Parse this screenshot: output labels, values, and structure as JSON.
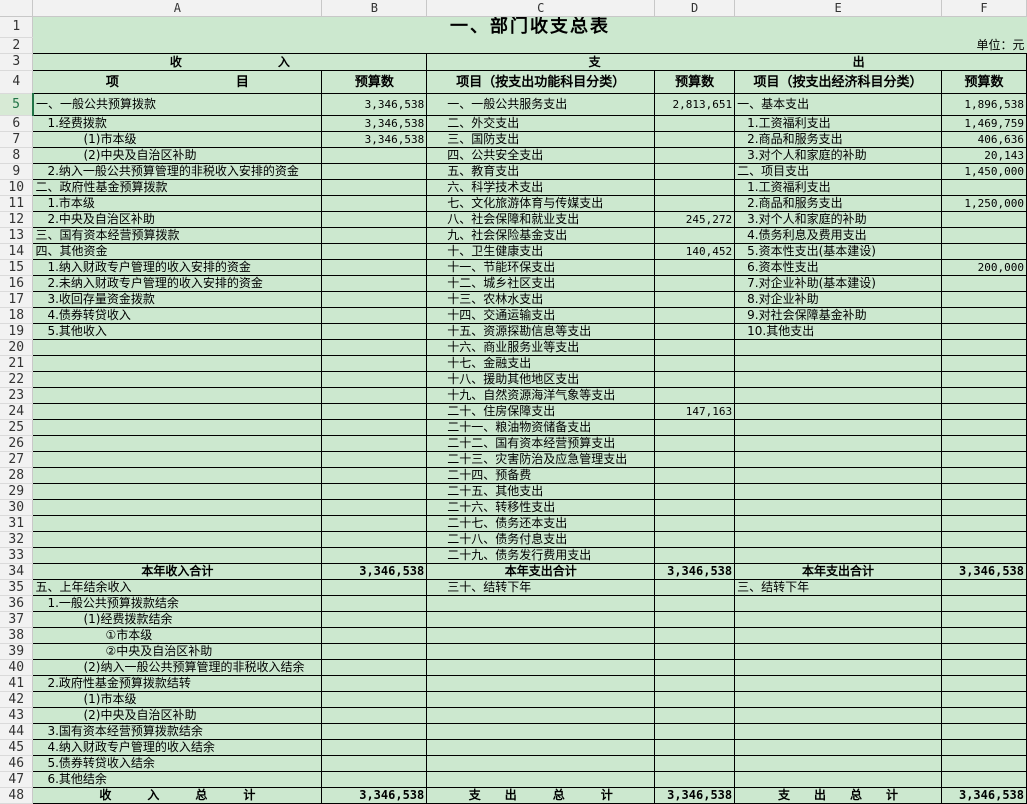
{
  "spreadsheet": {
    "columns": [
      "A",
      "B",
      "C",
      "D",
      "E",
      "F"
    ],
    "selected_row": 5,
    "fill_color": "#cce8cf",
    "title": "一、部门收支总表",
    "unit": "单位：元",
    "section_income": "收　　　　　　　　入",
    "section_expense": "支　　　　　　　　　　　　　　　　　　　　　出",
    "headers": [
      "项　　　　　　　　　目",
      "预算数",
      "项目（按支出功能科目分类）",
      "预算数",
      "项目（按支出经济科目分类）",
      "预算数"
    ],
    "rows": [
      [
        "一、一般公共预算拨款",
        "3,346,538",
        "一、一般公共服务支出",
        "2,813,651",
        "一、基本支出",
        "1,896,538"
      ],
      [
        "1.经费拨款",
        "3,346,538",
        "二、外交支出",
        "",
        "1.工资福利支出",
        "1,469,759"
      ],
      [
        "(1)市本级",
        "3,346,538",
        "三、国防支出",
        "",
        "2.商品和服务支出",
        "406,636"
      ],
      [
        "(2)中央及自治区补助",
        "",
        "四、公共安全支出",
        "",
        "3.对个人和家庭的补助",
        "20,143"
      ],
      [
        "2.纳入一般公共预算管理的非税收入安排的资金",
        "",
        "五、教育支出",
        "",
        "二、项目支出",
        "1,450,000"
      ],
      [
        "二、政府性基金预算拨款",
        "",
        "六、科学技术支出",
        "",
        "1.工资福利支出",
        ""
      ],
      [
        "1.市本级",
        "",
        "七、文化旅游体育与传媒支出",
        "",
        "2.商品和服务支出",
        "1,250,000"
      ],
      [
        "2.中央及自治区补助",
        "",
        "八、社会保障和就业支出",
        "245,272",
        "3.对个人和家庭的补助",
        ""
      ],
      [
        "三、国有资本经营预算拨款",
        "",
        "九、社会保险基金支出",
        "",
        "4.债务利息及费用支出",
        ""
      ],
      [
        "四、其他资金",
        "",
        "十、卫生健康支出",
        "140,452",
        "5.资本性支出(基本建设)",
        ""
      ],
      [
        "1.纳入财政专户管理的收入安排的资金",
        "",
        "十一、节能环保支出",
        "",
        "6.资本性支出",
        "200,000"
      ],
      [
        "2.未纳入财政专户管理的收入安排的资金",
        "",
        "十二、城乡社区支出",
        "",
        "7.对企业补助(基本建设)",
        ""
      ],
      [
        "3.收回存量资金拨款",
        "",
        "十三、农林水支出",
        "",
        "8.对企业补助",
        ""
      ],
      [
        "4.债券转贷收入",
        "",
        "十四、交通运输支出",
        "",
        "9.对社会保障基金补助",
        ""
      ],
      [
        "5.其他收入",
        "",
        "十五、资源探勘信息等支出",
        "",
        "10.其他支出",
        ""
      ],
      [
        "",
        "",
        "十六、商业服务业等支出",
        "",
        "",
        ""
      ],
      [
        "",
        "",
        "十七、金融支出",
        "",
        "",
        ""
      ],
      [
        "",
        "",
        "十八、援助其他地区支出",
        "",
        "",
        ""
      ],
      [
        "",
        "",
        "十九、自然资源海洋气象等支出",
        "",
        "",
        ""
      ],
      [
        "",
        "",
        "二十、住房保障支出",
        "147,163",
        "",
        ""
      ],
      [
        "",
        "",
        "二十一、粮油物资储备支出",
        "",
        "",
        ""
      ],
      [
        "",
        "",
        "二十二、国有资本经营预算支出",
        "",
        "",
        ""
      ],
      [
        "",
        "",
        "二十三、灾害防治及应急管理支出",
        "",
        "",
        ""
      ],
      [
        "",
        "",
        "二十四、预备费",
        "",
        "",
        ""
      ],
      [
        "",
        "",
        "二十五、其他支出",
        "",
        "",
        ""
      ],
      [
        "",
        "",
        "二十六、转移性支出",
        "",
        "",
        ""
      ],
      [
        "",
        "",
        "二十七、债务还本支出",
        "",
        "",
        ""
      ],
      [
        "",
        "",
        "二十八、债务付息支出",
        "",
        "",
        ""
      ],
      [
        "",
        "",
        "二十九、债务发行费用支出",
        "",
        "",
        ""
      ],
      [
        "本年收入合计",
        "3,346,538",
        "本年支出合计",
        "3,346,538",
        "本年支出合计",
        "3,346,538"
      ],
      [
        "五、上年结余收入",
        "",
        "三十、结转下年",
        "",
        "三、结转下年",
        ""
      ],
      [
        "1.一般公共预算拨款结余",
        "",
        "",
        "",
        "",
        ""
      ],
      [
        "(1)经费拨款结余",
        "",
        "",
        "",
        "",
        ""
      ],
      [
        "①市本级",
        "",
        "",
        "",
        "",
        ""
      ],
      [
        "②中央及自治区补助",
        "",
        "",
        "",
        "",
        ""
      ],
      [
        "(2)纳入一般公共预算管理的非税收入结余",
        "",
        "",
        "",
        "",
        ""
      ],
      [
        "2.政府性基金预算拨款结转",
        "",
        "",
        "",
        "",
        ""
      ],
      [
        "(1)市本级",
        "",
        "",
        "",
        "",
        ""
      ],
      [
        "(2)中央及自治区补助",
        "",
        "",
        "",
        "",
        ""
      ],
      [
        "3.国有资本经营预算拨款结余",
        "",
        "",
        "",
        "",
        ""
      ],
      [
        "4.纳入财政专户管理的收入结余",
        "",
        "",
        "",
        "",
        ""
      ],
      [
        "5.债券转贷收入结余",
        "",
        "",
        "",
        "",
        ""
      ],
      [
        "6.其他结余",
        "",
        "",
        "",
        "",
        ""
      ],
      [
        "收　　　入　　　总　　　计",
        "3,346,538",
        "支　　出　　　总　　　计",
        "3,346,538",
        "支　　出　　总　　计",
        "3,346,538"
      ]
    ]
  }
}
